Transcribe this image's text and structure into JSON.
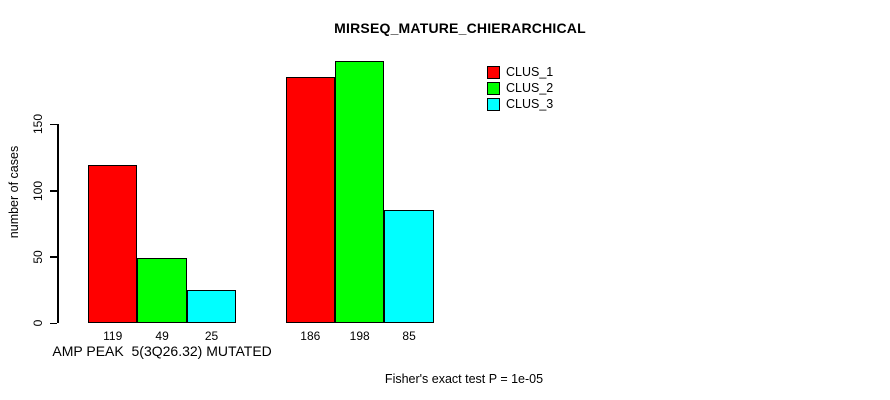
{
  "chart_data": {
    "type": "bar",
    "title": "MIRSEQ_MATURE_CHIERARCHICAL",
    "xlabel": "",
    "ylabel": "number of cases",
    "ylim": [
      0,
      150
    ],
    "yticks": [
      0,
      50,
      100,
      150
    ],
    "grid": false,
    "legend_position": "top-right",
    "categories": [
      "AMP PEAK  5(3Q26.32) MUTATED",
      ""
    ],
    "series": [
      {
        "name": "CLUS_1",
        "color": "#ff0000",
        "values": [
          119,
          186
        ]
      },
      {
        "name": "CLUS_2",
        "color": "#00ff00",
        "values": [
          49,
          198
        ]
      },
      {
        "name": "CLUS_3",
        "color": "#00ffff",
        "values": [
          25,
          85
        ]
      }
    ],
    "bar_value_labels": [
      [
        119,
        49,
        25
      ],
      [
        186,
        198,
        85
      ]
    ],
    "annotation": "Fisher's exact test P = 1e-05",
    "axis_color": "#000000",
    "bar_border_color": "#000000"
  }
}
